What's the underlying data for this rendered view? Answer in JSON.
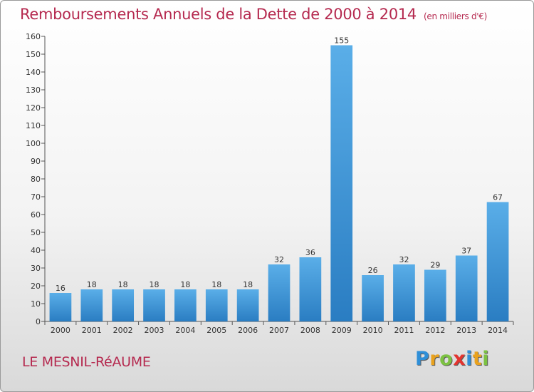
{
  "title": "Remboursements Annuels de la Dette de 2000 à 2014",
  "title_unit": "(en milliers d'€)",
  "town": "LE MESNIL-RéAUME",
  "logo": {
    "letters": [
      "P",
      "r",
      "o",
      "x",
      "i",
      "t",
      "i"
    ],
    "colors": [
      "#2f8fd8",
      "#e9a21e",
      "#7cc242",
      "#e3342f",
      "#2f8fd8",
      "#e9a21e",
      "#7cc242"
    ]
  },
  "colors": {
    "bar_top": "#5aaee8",
    "bar_bottom": "#2a7dc2",
    "title": "#b5294f"
  },
  "chart_data": {
    "type": "bar",
    "categories": [
      "2000",
      "2001",
      "2002",
      "2003",
      "2004",
      "2005",
      "2006",
      "2007",
      "2008",
      "2009",
      "2010",
      "2011",
      "2012",
      "2013",
      "2014"
    ],
    "values": [
      16,
      18,
      18,
      18,
      18,
      18,
      18,
      32,
      36,
      155,
      26,
      32,
      29,
      37,
      67
    ],
    "xlabel": "",
    "ylabel": "",
    "ylim": [
      0,
      160
    ],
    "yticks": [
      0,
      10,
      20,
      30,
      40,
      50,
      60,
      70,
      80,
      90,
      100,
      110,
      120,
      130,
      140,
      150,
      160
    ],
    "grid": false,
    "legend": "none"
  }
}
